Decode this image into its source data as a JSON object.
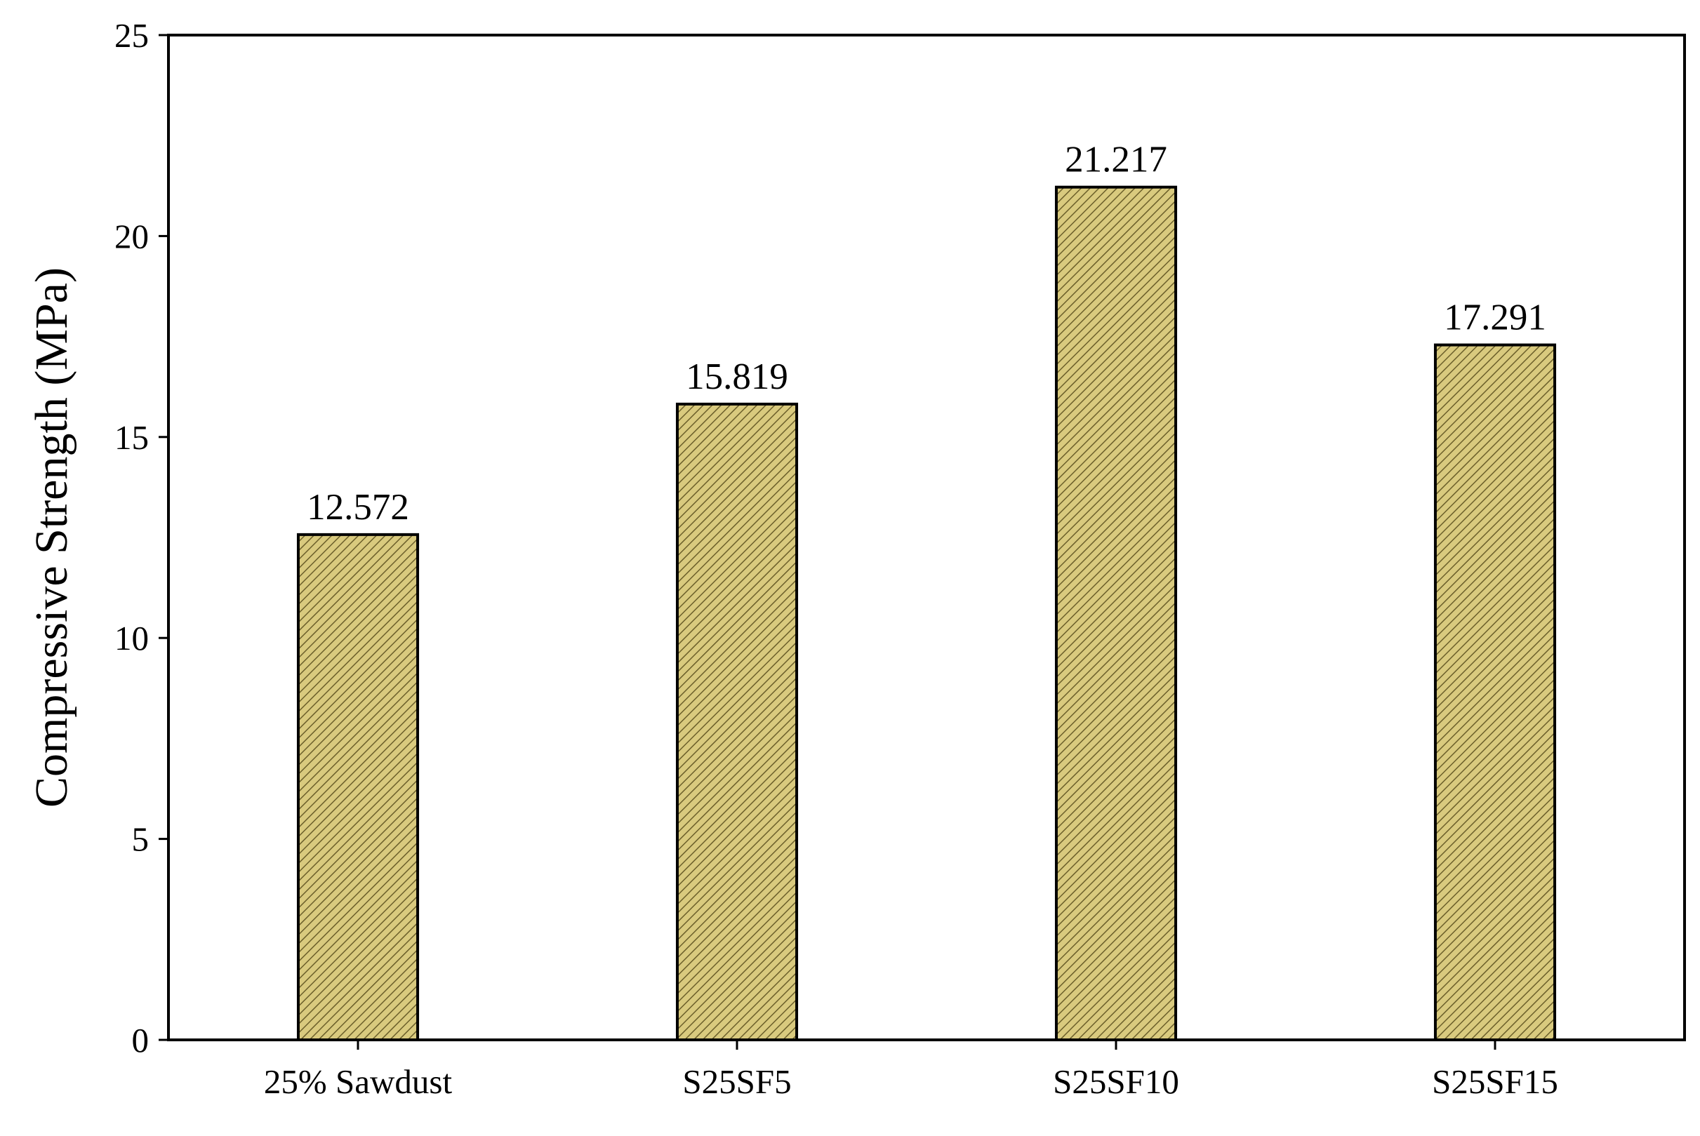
{
  "chart_data": {
    "type": "bar",
    "title": "",
    "xlabel": "",
    "ylabel": "Compressive Strength (MPa)",
    "categories": [
      "25% Sawdust",
      "S25SF5",
      "S25SF10",
      "S25SF15"
    ],
    "values": [
      12.572,
      15.819,
      21.217,
      17.291
    ],
    "data_labels": [
      "12.572",
      "15.819",
      "21.217",
      "17.291"
    ],
    "ylim": [
      0,
      25
    ],
    "yticks": [
      0,
      5,
      10,
      15,
      20,
      25
    ],
    "grid": false,
    "legend": "none",
    "colors": {
      "bar_fill": "#d9ca7e",
      "bar_hatch": "#6b5f2a",
      "bar_stroke": "#000000",
      "axis": "#000000"
    }
  }
}
